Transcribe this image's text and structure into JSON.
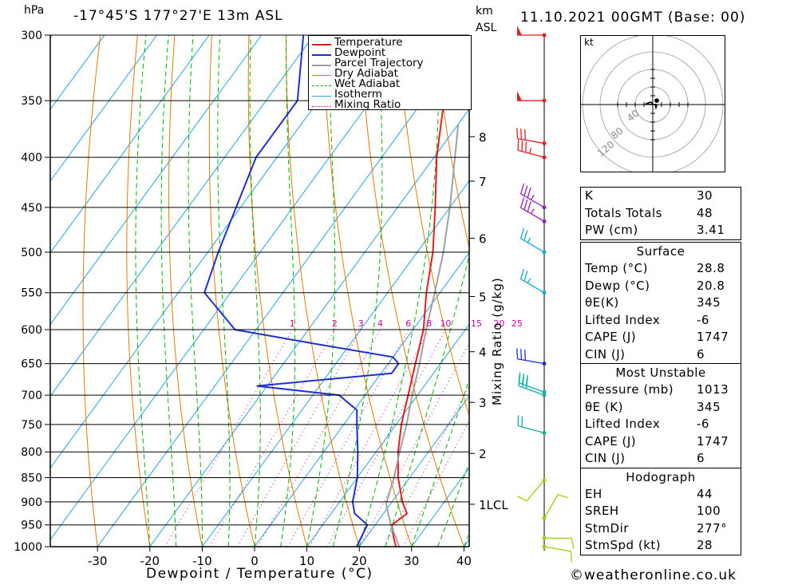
{
  "header": {
    "location": "-17°45'S  177°27'E  13m  ASL",
    "datetime": "11.10.2021  00GMT  (Base: 00)",
    "p_unit": "hPa",
    "km_unit": "km",
    "asl_unit": "ASL"
  },
  "chart_data": {
    "type": "line",
    "title": "-17°45'S  177°27'E  13m  ASL",
    "xlabel": "Dewpoint / Temperature (°C)",
    "ylabel": "hPa",
    "right_axis_label": "Mixing Ratio (g/kg)",
    "xlim": [
      -40,
      40
    ],
    "ylim": [
      1000,
      300
    ],
    "x_ticks": [
      -30,
      -20,
      -10,
      0,
      10,
      20,
      30,
      40
    ],
    "x_tick_labels": [
      "-30",
      "-20",
      "-10",
      "0",
      "10",
      "20",
      "30",
      "40"
    ],
    "pressure_levels": [
      300,
      350,
      400,
      450,
      500,
      550,
      600,
      650,
      700,
      750,
      800,
      850,
      900,
      950,
      1000
    ],
    "pressure_labels": [
      "300",
      "350",
      "400",
      "450",
      "500",
      "550",
      "600",
      "650",
      "700",
      "750",
      "800",
      "850",
      "900",
      "950",
      "1000"
    ],
    "height_ticks": [
      {
        "label": "8",
        "p": 381
      },
      {
        "label": "7",
        "p": 423
      },
      {
        "label": "6",
        "p": 484
      },
      {
        "label": "5",
        "p": 555
      },
      {
        "label": "4",
        "p": 632
      },
      {
        "label": "3",
        "p": 712
      },
      {
        "label": "2",
        "p": 803
      },
      {
        "label": "1LCL",
        "p": 905
      }
    ],
    "mixing_ratio_labels": [
      "1",
      "2",
      "3",
      "4",
      "6",
      "8",
      "10",
      "15",
      "20",
      "25"
    ],
    "mixing_ratio_values": [
      1,
      2,
      3,
      4,
      6,
      8,
      10,
      15,
      20,
      25
    ],
    "legend": [
      "Temperature",
      "Dewpoint",
      "Parcel Trajectory",
      "Dry Adiabat",
      "Wet Adiabat",
      "Isotherm",
      "Mixing Ratio"
    ],
    "legend_placement": "top-right",
    "colors": {
      "temperature": "#e02020",
      "dewpoint": "#2030d0",
      "parcel": "#a0a0a0",
      "dry_adiabat": "#e07a00",
      "wet_adiabat": "#00b000",
      "isotherm": "#2aa0e0",
      "mixing_ratio": "#d000a0"
    },
    "series": [
      {
        "name": "Temperature",
        "points": [
          {
            "p": 1013,
            "t": 28.8
          },
          {
            "p": 1000,
            "t": 27.0
          },
          {
            "p": 975,
            "t": 25.0
          },
          {
            "p": 950,
            "t": 23.2
          },
          {
            "p": 925,
            "t": 24.5
          },
          {
            "p": 900,
            "t": 22.0
          },
          {
            "p": 850,
            "t": 17.8
          },
          {
            "p": 800,
            "t": 14.2
          },
          {
            "p": 750,
            "t": 11.0
          },
          {
            "p": 700,
            "t": 8.2
          },
          {
            "p": 650,
            "t": 5.2
          },
          {
            "p": 600,
            "t": 2.0
          },
          {
            "p": 550,
            "t": -2.6
          },
          {
            "p": 500,
            "t": -7.0
          },
          {
            "p": 450,
            "t": -12.8
          },
          {
            "p": 400,
            "t": -19.5
          },
          {
            "p": 350,
            "t": -26.0
          },
          {
            "p": 300,
            "t": -36.0
          }
        ]
      },
      {
        "name": "Dewpoint",
        "points": [
          {
            "p": 1013,
            "t": 20.8
          },
          {
            "p": 1000,
            "t": 19.5
          },
          {
            "p": 950,
            "t": 18.5
          },
          {
            "p": 925,
            "t": 14.5
          },
          {
            "p": 900,
            "t": 12.5
          },
          {
            "p": 850,
            "t": 10.0
          },
          {
            "p": 800,
            "t": 6.5
          },
          {
            "p": 750,
            "t": 2.5
          },
          {
            "p": 725,
            "t": 0.5
          },
          {
            "p": 700,
            "t": -5.0
          },
          {
            "p": 685,
            "t": -22.0
          },
          {
            "p": 665,
            "t": 2.0
          },
          {
            "p": 650,
            "t": 2.0
          },
          {
            "p": 640,
            "t": 0.0
          },
          {
            "p": 620,
            "t": -17.0
          },
          {
            "p": 600,
            "t": -34.0
          },
          {
            "p": 550,
            "t": -45.0
          },
          {
            "p": 500,
            "t": -48.0
          },
          {
            "p": 400,
            "t": -54.0
          },
          {
            "p": 350,
            "t": -54.0
          },
          {
            "p": 300,
            "t": -62.0
          }
        ]
      },
      {
        "name": "Parcel Trajectory",
        "points": [
          {
            "p": 1013,
            "t": 28.8
          },
          {
            "p": 950,
            "t": 23.0
          },
          {
            "p": 905,
            "t": 19.2
          },
          {
            "p": 850,
            "t": 17.0
          },
          {
            "p": 800,
            "t": 14.5
          },
          {
            "p": 750,
            "t": 12.0
          },
          {
            "p": 700,
            "t": 9.0
          },
          {
            "p": 650,
            "t": 6.0
          },
          {
            "p": 600,
            "t": 2.5
          },
          {
            "p": 550,
            "t": -1.0
          },
          {
            "p": 500,
            "t": -5.0
          },
          {
            "p": 450,
            "t": -10.0
          },
          {
            "p": 400,
            "t": -16.0
          },
          {
            "p": 370,
            "t": -20.0
          }
        ]
      }
    ]
  },
  "wind_barbs": [
    {
      "p": 300,
      "dir": 270,
      "speed": 50,
      "color": "#e02020"
    },
    {
      "p": 350,
      "dir": 270,
      "speed": 50,
      "color": "#e02020"
    },
    {
      "p": 387,
      "dir": 280,
      "speed": 30,
      "color": "#e02020"
    },
    {
      "p": 400,
      "dir": 285,
      "speed": 35,
      "color": "#e02020"
    },
    {
      "p": 450,
      "dir": 300,
      "speed": 35,
      "color": "#9020c0"
    },
    {
      "p": 465,
      "dir": 300,
      "speed": 35,
      "color": "#9020c0"
    },
    {
      "p": 500,
      "dir": 300,
      "speed": 25,
      "color": "#14a8d8"
    },
    {
      "p": 550,
      "dir": 300,
      "speed": 25,
      "color": "#14a8d8"
    },
    {
      "p": 650,
      "dir": 280,
      "speed": 30,
      "color": "#2030d0"
    },
    {
      "p": 695,
      "dir": 290,
      "speed": 30,
      "color": "#10b0a0"
    },
    {
      "p": 700,
      "dir": 290,
      "speed": 30,
      "color": "#10b0a0"
    },
    {
      "p": 765,
      "dir": 285,
      "speed": 20,
      "color": "#10b0a0"
    },
    {
      "p": 855,
      "dir": 220,
      "speed": 10,
      "color": "#9ad000"
    },
    {
      "p": 935,
      "dir": 30,
      "speed": 10,
      "color": "#9ad000"
    },
    {
      "p": 980,
      "dir": 90,
      "speed": 10,
      "color": "#9ad000"
    },
    {
      "p": 1000,
      "dir": 100,
      "speed": 10,
      "color": "#9ad000"
    }
  ],
  "hodograph": {
    "unit_label": "kt",
    "ring_labels": [
      "40",
      "80",
      "120"
    ],
    "trace": [
      [
        0,
        0
      ],
      [
        -2,
        3
      ],
      [
        -6,
        2
      ],
      [
        -8,
        1
      ],
      [
        -3,
        0
      ],
      [
        2,
        0
      ],
      [
        5,
        -1
      ],
      [
        4,
        -4
      ],
      [
        3,
        1
      ]
    ]
  },
  "indices": {
    "top": [
      {
        "label": "K",
        "value": "30"
      },
      {
        "label": "Totals Totals",
        "value": "48"
      },
      {
        "label": "PW (cm)",
        "value": "3.41"
      }
    ],
    "surface": {
      "title": "Surface",
      "rows": [
        {
          "label": "Temp (°C)",
          "value": "28.8"
        },
        {
          "label": "Dewp (°C)",
          "value": "20.8"
        },
        {
          "label": "θE(K)",
          "value": "345"
        },
        {
          "label": "Lifted Index",
          "value": "-6"
        },
        {
          "label": "CAPE (J)",
          "value": "1747"
        },
        {
          "label": "CIN (J)",
          "value": "6"
        }
      ]
    },
    "most_unstable": {
      "title": "Most Unstable",
      "rows": [
        {
          "label": "Pressure (mb)",
          "value": "1013"
        },
        {
          "label": "θE (K)",
          "value": "345"
        },
        {
          "label": "Lifted Index",
          "value": "-6"
        },
        {
          "label": "CAPE (J)",
          "value": "1747"
        },
        {
          "label": "CIN (J)",
          "value": "6"
        }
      ]
    },
    "hodograph": {
      "title": "Hodograph",
      "rows": [
        {
          "label": "EH",
          "value": "44"
        },
        {
          "label": "SREH",
          "value": "100"
        },
        {
          "label": "StmDir",
          "value": "277°"
        },
        {
          "label": "StmSpd (kt)",
          "value": "28"
        }
      ]
    }
  },
  "footer": {
    "copyright_symbol": "©",
    "site": "weatheronline.co.uk"
  }
}
